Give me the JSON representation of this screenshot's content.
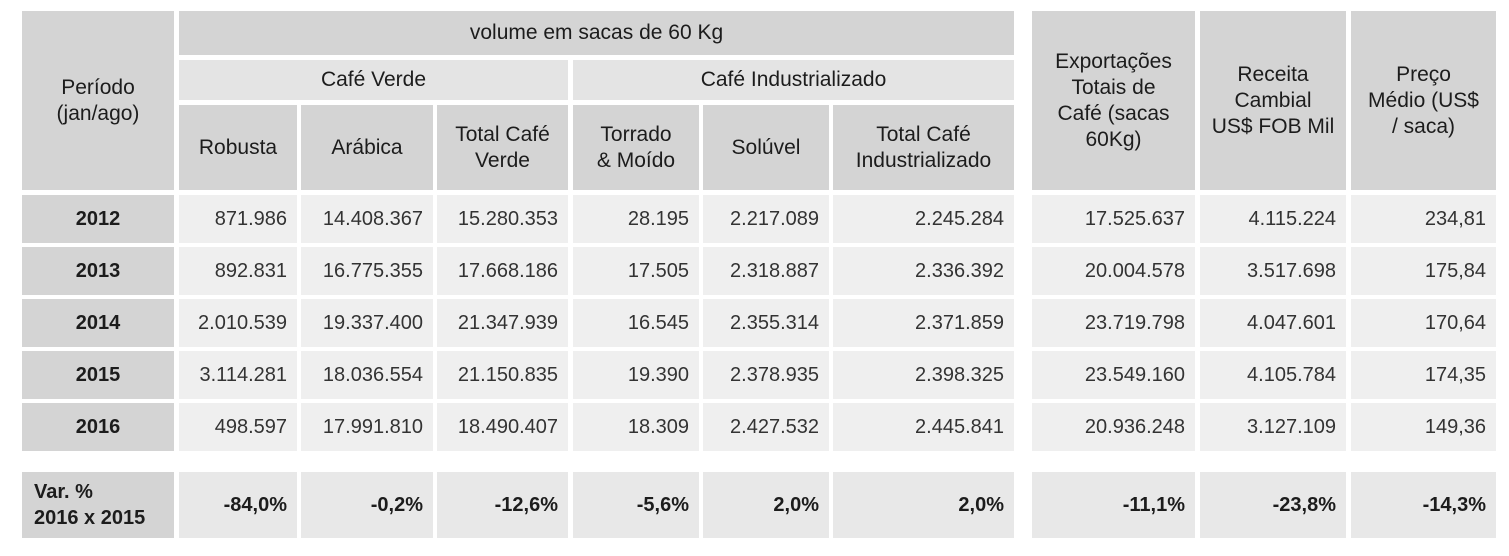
{
  "header": {
    "period": "Período\n(jan/ago)",
    "volume": "volume em sacas de 60 Kg",
    "cafe_verde": "Café Verde",
    "cafe_industrializado": "Café Industrializado",
    "robusta": "Robusta",
    "arabica": "Arábica",
    "total_verde": "Total Café\nVerde",
    "torrado": "Torrado\n& Moído",
    "soluvel": "Solúvel",
    "total_ind": "Total Café\nIndustrializado",
    "exportacoes": "Exportações\nTotais de\nCafé (sacas\n60Kg)",
    "receita": "Receita\nCambial\nUS$ FOB Mil",
    "preco": "Preço\nMédio (US$\n/ saca)"
  },
  "rows": [
    {
      "year": "2012",
      "robusta": "871.986",
      "arabica": "14.408.367",
      "total_verde": "15.280.353",
      "torrado": "28.195",
      "soluvel": "2.217.089",
      "total_ind": "2.245.284",
      "export": "17.525.637",
      "receita": "4.115.224",
      "preco": "234,81"
    },
    {
      "year": "2013",
      "robusta": "892.831",
      "arabica": "16.775.355",
      "total_verde": "17.668.186",
      "torrado": "17.505",
      "soluvel": "2.318.887",
      "total_ind": "2.336.392",
      "export": "20.004.578",
      "receita": "3.517.698",
      "preco": "175,84"
    },
    {
      "year": "2014",
      "robusta": "2.010.539",
      "arabica": "19.337.400",
      "total_verde": "21.347.939",
      "torrado": "16.545",
      "soluvel": "2.355.314",
      "total_ind": "2.371.859",
      "export": "23.719.798",
      "receita": "4.047.601",
      "preco": "170,64"
    },
    {
      "year": "2015",
      "robusta": "3.114.281",
      "arabica": "18.036.554",
      "total_verde": "21.150.835",
      "torrado": "19.390",
      "soluvel": "2.378.935",
      "total_ind": "2.398.325",
      "export": "23.549.160",
      "receita": "4.105.784",
      "preco": "174,35"
    },
    {
      "year": "2016",
      "robusta": "498.597",
      "arabica": "17.991.810",
      "total_verde": "18.490.407",
      "torrado": "18.309",
      "soluvel": "2.427.532",
      "total_ind": "2.445.841",
      "export": "20.936.248",
      "receita": "3.127.109",
      "preco": "149,36"
    }
  ],
  "variation": {
    "label": "Var. %\n2016 x 2015",
    "robusta": "-84,0%",
    "arabica": "-0,2%",
    "total_verde": "-12,6%",
    "torrado": "-5,6%",
    "soluvel": "2,0%",
    "total_ind": "2,0%",
    "export": "-11,1%",
    "receita": "-23,8%",
    "preco": "-14,3%"
  }
}
